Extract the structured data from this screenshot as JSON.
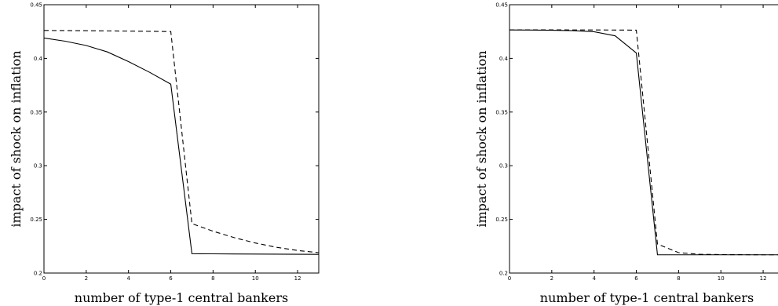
{
  "chart_data": [
    {
      "type": "line",
      "xlabel": "number of type-1 central bankers",
      "ylabel": "impact of shock on inflation",
      "xlim": [
        0,
        13
      ],
      "ylim": [
        0.2,
        0.45
      ],
      "xticks": [
        "0",
        "2",
        "4",
        "6",
        "8",
        "10",
        "12"
      ],
      "yticks": [
        "0.2",
        "0.25",
        "0.3",
        "0.35",
        "0.4",
        "0.45"
      ],
      "grid": false,
      "series": [
        {
          "style": "solid",
          "x": [
            0,
            1,
            2,
            3,
            4,
            5,
            6,
            7,
            8,
            9,
            10,
            11,
            12,
            13
          ],
          "values": [
            0.419,
            0.416,
            0.412,
            0.406,
            0.397,
            0.387,
            0.376,
            0.218,
            0.2179,
            0.2178,
            0.2177,
            0.2176,
            0.2175,
            0.2174
          ]
        },
        {
          "style": "dashed",
          "x": [
            0,
            1,
            2,
            3,
            4,
            5,
            6,
            7,
            8,
            9,
            10,
            11,
            12,
            13
          ],
          "values": [
            0.426,
            0.4259,
            0.4258,
            0.4256,
            0.4254,
            0.4252,
            0.425,
            0.246,
            0.239,
            0.233,
            0.228,
            0.224,
            0.221,
            0.219
          ]
        }
      ]
    },
    {
      "type": "line",
      "xlabel": "number of type-1 central bankers",
      "ylabel": "impact of shock on inflation",
      "xlim": [
        0,
        13
      ],
      "ylim": [
        0.2,
        0.45
      ],
      "xticks": [
        "0",
        "2",
        "4",
        "6",
        "8",
        "10",
        "12"
      ],
      "yticks": [
        "0.2",
        "0.25",
        "0.3",
        "0.35",
        "0.4",
        "0.45"
      ],
      "grid": false,
      "series": [
        {
          "style": "solid",
          "x": [
            0,
            1,
            2,
            3,
            4,
            5,
            6,
            7,
            8,
            9,
            10,
            11,
            12,
            13
          ],
          "values": [
            0.4265,
            0.4264,
            0.4262,
            0.4258,
            0.4248,
            0.421,
            0.405,
            0.217,
            0.217,
            0.217,
            0.217,
            0.217,
            0.217,
            0.217
          ]
        },
        {
          "style": "dashed",
          "x": [
            0,
            1,
            2,
            3,
            4,
            5,
            6,
            7,
            8,
            9,
            10,
            11,
            12,
            13
          ],
          "values": [
            0.4266,
            0.4266,
            0.4266,
            0.4265,
            0.4265,
            0.4264,
            0.4263,
            0.227,
            0.219,
            0.2175,
            0.2172,
            0.2171,
            0.217,
            0.217
          ]
        }
      ]
    }
  ]
}
